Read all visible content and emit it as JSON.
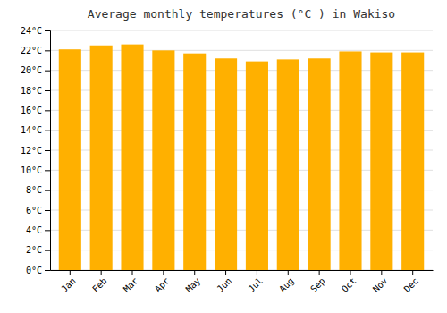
{
  "chart_data": {
    "type": "bar",
    "title": "Average monthly temperatures (°C ) in Wakiso",
    "categories": [
      "Jan",
      "Feb",
      "Mar",
      "Apr",
      "May",
      "Jun",
      "Jul",
      "Aug",
      "Sep",
      "Oct",
      "Nov",
      "Dec"
    ],
    "values": [
      22.1,
      22.5,
      22.6,
      22.0,
      21.7,
      21.2,
      20.9,
      21.1,
      21.2,
      21.9,
      21.8,
      21.8
    ],
    "color": "#FFB000",
    "ylim": [
      0,
      24
    ],
    "yticks": [
      {
        "value": 0,
        "label": "0°C"
      },
      {
        "value": 2,
        "label": "2°C"
      },
      {
        "value": 4,
        "label": "4°C"
      },
      {
        "value": 6,
        "label": "6°C"
      },
      {
        "value": 8,
        "label": "8°C"
      },
      {
        "value": 10,
        "label": "10°C"
      },
      {
        "value": 12,
        "label": "12°C"
      },
      {
        "value": 14,
        "label": "14°C"
      },
      {
        "value": 16,
        "label": "16°C"
      },
      {
        "value": 18,
        "label": "18°C"
      },
      {
        "value": 20,
        "label": "20°C"
      },
      {
        "value": 22,
        "label": "22°C"
      },
      {
        "value": 24,
        "label": "24°C"
      }
    ],
    "grid": true
  }
}
